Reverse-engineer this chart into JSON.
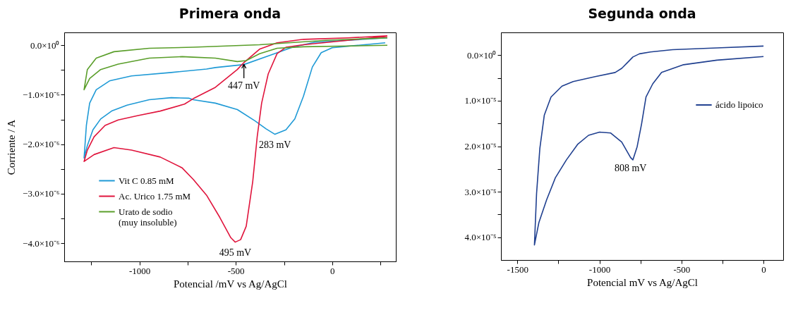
{
  "chart_data": [
    {
      "type": "line",
      "title": "Primera onda",
      "xlabel": "Potencial /mV vs Ag/AgCl",
      "ylabel": "Corriente / A",
      "legend": "bottom left",
      "xlim": [
        -1390,
        330
      ],
      "ylim": [
        -4.37e-06,
        2.6e-07
      ],
      "xticks": [
        {
          "value": -1250,
          "label": null
        },
        -1000,
        {
          "value": -750,
          "label": null
        },
        -500,
        {
          "value": -250,
          "label": null
        },
        0,
        {
          "value": 250,
          "label": null
        }
      ],
      "yticks": [
        {
          "value": 0,
          "label": "0.0×10⁰"
        },
        {
          "value": -5e-07,
          "label": null
        },
        {
          "value": -1e-06,
          "label": "−1.0×10⁻⁶"
        },
        {
          "value": -1.5e-06,
          "label": null
        },
        {
          "value": -2e-06,
          "label": "−2.0×10⁻⁶"
        },
        {
          "value": -2.5e-06,
          "label": null
        },
        {
          "value": -3e-06,
          "label": "−3.0×10⁻⁶"
        },
        {
          "value": -3.5e-06,
          "label": null
        },
        {
          "value": -4e-06,
          "label": "−4.0×10⁻⁶"
        }
      ],
      "series": [
        {
          "name": "Vit C 0.85 mM",
          "color": "#1f9ad6",
          "x": [
            286,
            80,
            -92,
            -206,
            -320,
            -458,
            -606,
            -652,
            -835,
            -1041,
            -1155,
            -1224,
            -1258,
            -1275,
            -1287,
            -1270,
            -1241,
            -1201,
            -1144,
            -1064,
            -949,
            -835,
            -744,
            -721,
            -606,
            -492,
            -400,
            -343,
            -297,
            -240,
            -194,
            -149,
            -103,
            -57,
            0,
            80,
            275
          ],
          "values": [
            1.5e-07,
            1e-07,
            6e-08,
            -4e-08,
            -2e-07,
            -3.9e-07,
            -4.5e-07,
            -4.8e-07,
            -5.5e-07,
            -6.2e-07,
            -7.2e-07,
            -9e-07,
            -1.17e-06,
            -1.62e-06,
            -2.28e-06,
            -2.03e-06,
            -1.71e-06,
            -1.49e-06,
            -1.33e-06,
            -1.21e-06,
            -1.1e-06,
            -1.06e-06,
            -1.07e-06,
            -1.1e-06,
            -1.17e-06,
            -1.3e-06,
            -1.53e-06,
            -1.69e-06,
            -1.8e-06,
            -1.71e-06,
            -1.49e-06,
            -1.03e-06,
            -4.4e-07,
            -1.5e-07,
            -5e-08,
            -2e-08,
            5e-08
          ]
        },
        {
          "name": "Ac. Urico 1.75 mM",
          "color": "#e0143c",
          "x": [
            286,
            80,
            -149,
            -286,
            -377,
            -458,
            -492,
            -606,
            -721,
            -766,
            -892,
            -1007,
            -1110,
            -1178,
            -1235,
            -1270,
            -1287,
            -1235,
            -1132,
            -1041,
            -892,
            -778,
            -721,
            -652,
            -583,
            -526,
            -503,
            -475,
            -446,
            -412,
            -389,
            -366,
            -332,
            -286,
            -240,
            -149,
            80,
            286
          ],
          "values": [
            1.9e-07,
            1.5e-07,
            1.2e-07,
            5e-08,
            -8e-08,
            -3.5e-07,
            -4.9e-07,
            -8.5e-07,
            -1.08e-06,
            -1.19e-06,
            -1.33e-06,
            -1.42e-06,
            -1.51e-06,
            -1.62e-06,
            -1.85e-06,
            -2.12e-06,
            -2.35e-06,
            -2.21e-06,
            -2.07e-06,
            -2.12e-06,
            -2.26e-06,
            -2.48e-06,
            -2.71e-06,
            -3.03e-06,
            -3.48e-06,
            -3.89e-06,
            -3.98e-06,
            -3.93e-06,
            -3.66e-06,
            -2.75e-06,
            -1.85e-06,
            -1.17e-06,
            -5.8e-07,
            -1.7e-07,
            -4e-08,
            1e-08,
            1e-07,
            1.8e-07
          ]
        },
        {
          "name": "Urato de sodio\n(muy insoluble)",
          "color": "#5a9e2a",
          "x": [
            286,
            -34,
            -377,
            -721,
            -949,
            -1132,
            -1224,
            -1270,
            -1287,
            -1258,
            -1201,
            -1110,
            -949,
            -778,
            -721,
            -606,
            -492,
            -446,
            -377,
            -286,
            -149,
            286
          ],
          "values": [
            1.5e-07,
            1e-07,
            1e-08,
            -4e-08,
            -6e-08,
            -1.3e-07,
            -2.6e-07,
            -4.9e-07,
            -9e-07,
            -6.7e-07,
            -4.9e-07,
            -3.8e-07,
            -2.6e-07,
            -2.3e-07,
            -2.4e-07,
            -2.6e-07,
            -3.3e-07,
            -3.1e-07,
            -1.7e-07,
            -6e-08,
            -3e-08,
            0
          ]
        }
      ],
      "annotations": [
        {
          "text": "447 mV",
          "x": -458,
          "y": -3.8e-07
        },
        {
          "text": "283 mV",
          "x": -297,
          "y": -1.8e-06
        },
        {
          "text": "495 mV",
          "x": -503,
          "y": -3.98e-06
        }
      ]
    },
    {
      "type": "line",
      "title": "Segunda onda",
      "xlabel": "Potencial mV vs Ag/AgCl",
      "legend": "top right",
      "xlim": [
        -1600,
        120
      ],
      "ylim": [
        4.5e-05,
        -5e-06
      ],
      "xticks": [
        -1500,
        {
          "value": -1250,
          "label": null
        },
        -1000,
        {
          "value": -750,
          "label": null
        },
        -500,
        {
          "value": -250,
          "label": null
        },
        0
      ],
      "yticks": [
        {
          "value": 0,
          "label": "0.0×10⁰"
        },
        {
          "value": 5e-06,
          "label": null
        },
        {
          "value": 1e-05,
          "label": "1.0×10⁻⁵"
        },
        {
          "value": 1.5e-05,
          "label": null
        },
        {
          "value": 2e-05,
          "label": "2.0×10⁻⁵"
        },
        {
          "value": 2.5e-05,
          "label": null
        },
        {
          "value": 3e-05,
          "label": "3.0×10⁻⁵"
        },
        {
          "value": 3.5e-05,
          "label": null
        },
        {
          "value": 4e-05,
          "label": "4.0×10⁻⁵"
        }
      ],
      "series": [
        {
          "name": "ácido lipoico",
          "color": "#1f3f8f",
          "x": [
            0,
            -284,
            -554,
            -689,
            -756,
            -796,
            -823,
            -864,
            -904,
            -1026,
            -1160,
            -1228,
            -1295,
            -1336,
            -1363,
            -1383,
            -1396,
            -1369,
            -1322,
            -1268,
            -1201,
            -1133,
            -1066,
            -999,
            -931,
            -864,
            -810,
            -796,
            -770,
            -743,
            -716,
            -675,
            -621,
            -487,
            -284,
            0
          ],
          "values": [
            -2e-06,
            -1.6e-06,
            -1.2e-06,
            -7e-07,
            -3e-07,
            4e-07,
            1.4e-06,
            2.9e-06,
            3.8e-06,
            4.7e-06,
            5.8e-06,
            6.8e-06,
            9.2e-06,
            1.32e-05,
            2.05e-05,
            3.04e-05,
            4.17e-05,
            3.68e-05,
            3.18e-05,
            2.69e-05,
            2.3e-05,
            1.96e-05,
            1.76e-05,
            1.69e-05,
            1.71e-05,
            1.91e-05,
            2.25e-05,
            2.3e-05,
            2.01e-05,
            1.51e-05,
            9.2e-06,
            6.3e-06,
            3.8e-06,
            2.1e-06,
            1.1e-06,
            3e-07
          ]
        }
      ],
      "annotations": [
        {
          "text": "808 mV",
          "x": -810,
          "y": 2.25e-05
        }
      ]
    }
  ]
}
